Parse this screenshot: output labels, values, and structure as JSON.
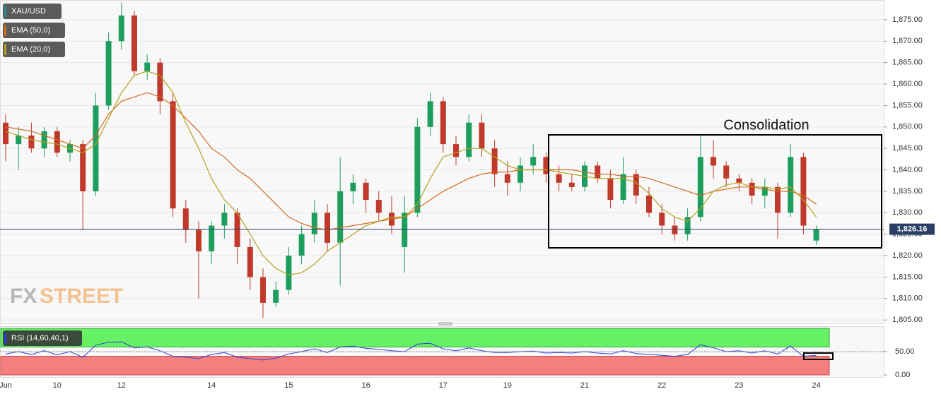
{
  "chart_data": {
    "type": "candlestick",
    "x": [
      "Jun",
      null,
      null,
      null,
      "10",
      null,
      null,
      null,
      null,
      "12",
      null,
      null,
      null,
      null,
      null,
      null,
      "14",
      null,
      null,
      null,
      null,
      null,
      "15",
      null,
      null,
      null,
      null,
      null,
      "16",
      null,
      null,
      null,
      null,
      null,
      "17",
      null,
      null,
      null,
      null,
      "19",
      null,
      null,
      null,
      null,
      null,
      "21",
      null,
      null,
      null,
      null,
      null,
      "22",
      null,
      null,
      null,
      null,
      null,
      "23",
      null,
      null,
      null,
      null,
      null,
      "24"
    ],
    "series": [
      {
        "name": "XAU/USD",
        "color": "#2a8c8c",
        "up_color": "#1e9e5e",
        "down_color": "#c0392b",
        "open": [
          1851,
          1846,
          1848,
          1845,
          1849,
          1844,
          1846,
          1835,
          1855,
          1870,
          1876,
          1863,
          1865,
          1856,
          1831,
          1826,
          1821,
          1827,
          1830,
          1822,
          1815,
          1809,
          1812,
          1820,
          1825,
          1830,
          1823,
          1835,
          1837,
          1833,
          1830,
          1822,
          1830,
          1850,
          1856,
          1846,
          1843,
          1851,
          1845,
          1839,
          1837,
          1841,
          1843,
          1839,
          1837,
          1836,
          1841,
          1838,
          1833,
          1839,
          1834,
          1830,
          1827,
          1825,
          1829,
          1843,
          1841,
          1838,
          1837,
          1834,
          1836,
          1830,
          1843,
          1823.5
        ],
        "high": [
          1853,
          1850,
          1851,
          1850,
          1850,
          1847,
          1847,
          1858,
          1872,
          1879,
          1877,
          1867,
          1866,
          1858,
          1833,
          1828,
          1828,
          1832,
          1831,
          1824,
          1817,
          1814,
          1822,
          1827,
          1833,
          1832,
          1843,
          1839,
          1838,
          1835,
          1834,
          1834,
          1852,
          1858,
          1857,
          1848,
          1853,
          1853,
          1847,
          1842,
          1843,
          1846,
          1844,
          1841,
          1839,
          1842,
          1842,
          1840,
          1843,
          1840,
          1836,
          1832,
          1829,
          1831,
          1848,
          1847,
          1842,
          1839,
          1838,
          1838,
          1837,
          1846,
          1844,
          1827
        ],
        "low": [
          1842,
          1840,
          1844,
          1843,
          1843,
          1842,
          1826,
          1834,
          1854,
          1868,
          1862,
          1861,
          1853,
          1829,
          1823,
          1810,
          1818,
          1824,
          1818,
          1812,
          1805.5,
          1808,
          1811,
          1818,
          1823,
          1821,
          1813,
          1832,
          1830,
          1828,
          1825,
          1816,
          1829,
          1848,
          1844,
          1841,
          1842,
          1843,
          1836,
          1834,
          1835,
          1839,
          1837,
          1835,
          1835,
          1835,
          1837,
          1831,
          1832,
          1832,
          1829,
          1825,
          1823.5,
          1823.5,
          1828,
          1838,
          1836,
          1835,
          1832,
          1831,
          1824,
          1829,
          1825,
          1822.5
        ],
        "close": [
          1846,
          1848,
          1845,
          1849,
          1844,
          1846,
          1835,
          1855,
          1870,
          1876,
          1863,
          1865,
          1856,
          1831,
          1826,
          1821,
          1827,
          1830,
          1822,
          1815,
          1809,
          1812,
          1820,
          1825,
          1830,
          1823,
          1835,
          1837,
          1833,
          1830,
          1827,
          1830,
          1850,
          1856,
          1846,
          1843,
          1851,
          1845,
          1839,
          1837,
          1841,
          1843,
          1839,
          1837,
          1836,
          1841,
          1838,
          1833,
          1839,
          1834,
          1830,
          1827,
          1825,
          1829,
          1843,
          1841,
          1838,
          1837,
          1834,
          1836,
          1830,
          1843,
          1827,
          1826.16
        ]
      },
      {
        "name": "EMA (50,0)",
        "color": "#d2691e",
        "values": [
          1850,
          1849.5,
          1849,
          1848,
          1847,
          1846,
          1845,
          1848,
          1853,
          1856,
          1857,
          1858,
          1857,
          1855,
          1852,
          1849,
          1845,
          1843,
          1840,
          1838,
          1835,
          1832,
          1829,
          1827.5,
          1826.5,
          1826,
          1826.5,
          1827,
          1827.5,
          1828,
          1828.5,
          1829,
          1831,
          1833,
          1835,
          1836.5,
          1838,
          1839,
          1839.5,
          1839.5,
          1840,
          1840,
          1840,
          1840,
          1840,
          1839.5,
          1839,
          1839,
          1838.5,
          1838.5,
          1838,
          1837,
          1836,
          1835,
          1834,
          1835,
          1835.5,
          1836,
          1836,
          1835.5,
          1835,
          1835,
          1834,
          1832
        ]
      },
      {
        "name": "EMA (20,0)",
        "color": "#b5a21e",
        "values": [
          1849,
          1848,
          1847,
          1846.5,
          1846,
          1845,
          1844,
          1846,
          1852,
          1858,
          1862,
          1863,
          1862,
          1858,
          1851,
          1845,
          1838,
          1833,
          1830,
          1825,
          1820,
          1817,
          1815.5,
          1816,
          1818,
          1821,
          1823,
          1825,
          1827,
          1828,
          1829,
          1829,
          1832,
          1838,
          1843,
          1844,
          1845,
          1845,
          1843,
          1841,
          1840,
          1840,
          1840,
          1839.5,
          1839,
          1838.5,
          1838,
          1838,
          1838,
          1837,
          1834.5,
          1831,
          1829,
          1828,
          1831,
          1835,
          1836.5,
          1837,
          1836,
          1836,
          1835.5,
          1836,
          1833,
          1829
        ]
      }
    ],
    "ylim": [
      1804.2,
      1879.6
    ],
    "yticks": [
      {
        "value": 1805,
        "label": "1,805.00"
      },
      {
        "value": 1810,
        "label": "1,810.00"
      },
      {
        "value": 1815,
        "label": "1,815.00"
      },
      {
        "value": 1820,
        "label": "1,820.00"
      },
      {
        "value": 1825,
        "label": "1,825.00"
      },
      {
        "value": 1830,
        "label": "1,830.00"
      },
      {
        "value": 1835,
        "label": "1,835.00"
      },
      {
        "value": 1840,
        "label": "1,840.00"
      },
      {
        "value": 1845,
        "label": "1,845.00"
      },
      {
        "value": 1850,
        "label": "1,850.00"
      },
      {
        "value": 1855,
        "label": "1,855.00"
      },
      {
        "value": 1860,
        "label": "1,860.00"
      },
      {
        "value": 1865,
        "label": "1,865.00"
      },
      {
        "value": 1870,
        "label": "1,870.00"
      },
      {
        "value": 1875,
        "label": "1,875.00"
      }
    ],
    "grid": true,
    "last_price": {
      "value": 1826.16,
      "label": "1,826.16"
    },
    "annotation": "Consolidation",
    "watermark": [
      "FX",
      "STREET"
    ],
    "rsi": {
      "name": "RSI (14,60,40,1)",
      "color": "#2b3fd6",
      "upper_band": 60,
      "lower_band": 40,
      "upper_color": "#66f066",
      "lower_color": "#f57f7f",
      "ylim": [
        0,
        100
      ],
      "yticks": [
        {
          "value": 0,
          "label": "0.00"
        },
        {
          "value": 50,
          "label": "50.00"
        }
      ],
      "values": [
        45,
        50,
        44,
        52,
        43,
        50,
        38,
        64,
        70,
        71,
        58,
        60,
        52,
        40,
        38,
        35,
        44,
        48,
        38,
        35,
        32,
        36,
        45,
        50,
        56,
        48,
        60,
        62,
        57,
        55,
        52,
        50,
        66,
        68,
        56,
        52,
        58,
        52,
        48,
        48,
        50,
        51,
        47,
        48,
        47,
        50,
        47,
        45,
        52,
        46,
        44,
        42,
        40,
        44,
        65,
        58,
        50,
        52,
        47,
        52,
        45,
        62,
        40,
        42
      ]
    }
  }
}
